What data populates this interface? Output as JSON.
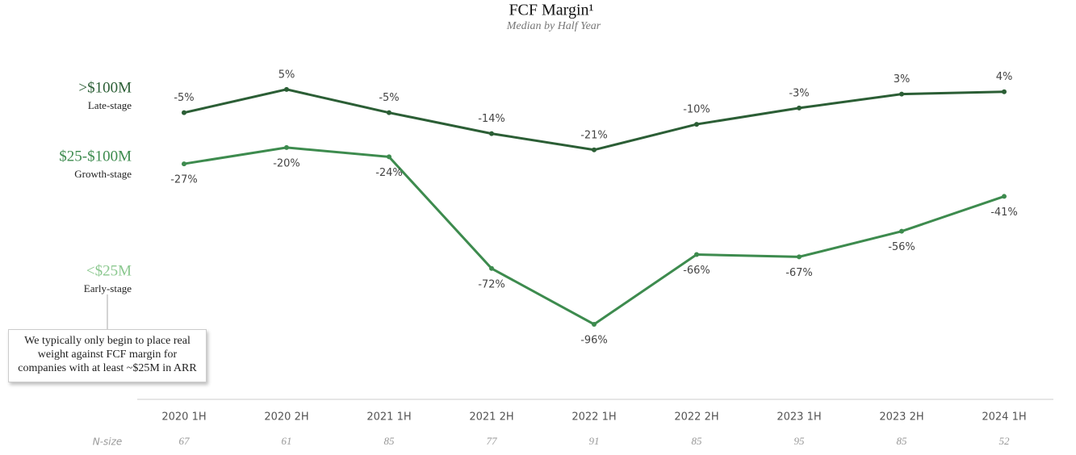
{
  "chart_data": {
    "type": "line",
    "title": "FCF Margin¹",
    "subtitle": "Median by Half Year",
    "categories": [
      "2020 1H",
      "2020 2H",
      "2021 1H",
      "2021 2H",
      "2022 1H",
      "2022 2H",
      "2023 1H",
      "2023 2H",
      "2024 1H"
    ],
    "series": [
      {
        "name": ">$100M",
        "stage": "Late-stage",
        "color": "#2b5e35",
        "values": [
          -5,
          5,
          -5,
          -14,
          -21,
          -10,
          -3,
          3,
          4
        ],
        "value_labels": [
          "-5%",
          "5%",
          "-5%",
          "-14%",
          "-21%",
          "-10%",
          "-3%",
          "3%",
          "4%"
        ]
      },
      {
        "name": "$25-$100M",
        "stage": "Growth-stage",
        "color": "#3d8b4e",
        "values": [
          -27,
          -20,
          -24,
          -72,
          -96,
          -66,
          -67,
          -56,
          -41
        ],
        "value_labels": [
          "-27%",
          "-20%",
          "-24%",
          "-72%",
          "-96%",
          "-66%",
          "-67%",
          "-56%",
          "-41%"
        ]
      },
      {
        "name": "<$25M",
        "stage": "Early-stage",
        "color": "#8bc88f",
        "values": [
          null,
          null,
          null,
          null,
          null,
          null,
          null,
          null,
          null
        ]
      }
    ],
    "ylim": [
      -130,
      15
    ],
    "n_size": {
      "label": "N-size",
      "values": [
        67,
        61,
        85,
        77,
        91,
        85,
        95,
        85,
        52
      ]
    },
    "annotation": "We typically only begin to place real weight against FCF margin for companies with at least ~$25M in ARR"
  }
}
